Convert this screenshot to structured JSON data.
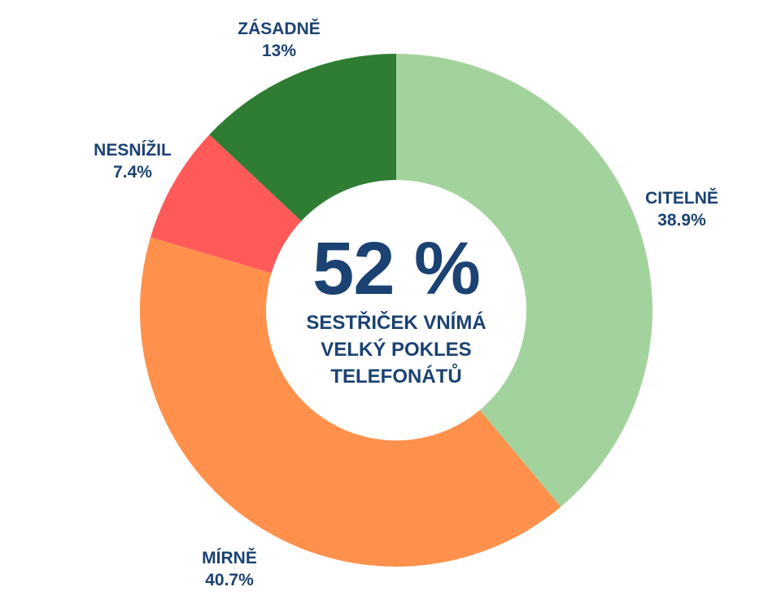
{
  "chart_data": {
    "type": "pie",
    "subtype": "donut",
    "title": "",
    "categories": [
      "CITELNĚ",
      "MÍRNĚ",
      "NESNÍŽIL",
      "ZÁSADNĚ"
    ],
    "values": [
      38.9,
      40.7,
      7.4,
      13.0
    ],
    "colors": [
      "#a3d39c",
      "#ff914d",
      "#ff5a5a",
      "#2e7d32"
    ],
    "start_angle_deg": 0,
    "direction": "clockwise",
    "center_annotation": {
      "value": "52 %",
      "text": [
        "SESTŘIČEK VNÍMÁ",
        "VELKÝ POKLES",
        "TELEFONÁTŮ"
      ]
    }
  },
  "labels": {
    "citelne": {
      "name": "CITELNĚ",
      "value": "38.9%"
    },
    "mirne": {
      "name": "MÍRNĚ",
      "value": "40.7%"
    },
    "nesnizil": {
      "name": "NESNÍŽIL",
      "value": "7.4%"
    },
    "zasadne": {
      "name": "ZÁSADNĚ",
      "value": "13%"
    }
  },
  "center": {
    "value": "52 %",
    "line1": "SESTŘIČEK VNÍMÁ",
    "line2": "VELKÝ POKLES",
    "line3": "TELEFONÁTŮ"
  },
  "text_color": "#1b4272"
}
